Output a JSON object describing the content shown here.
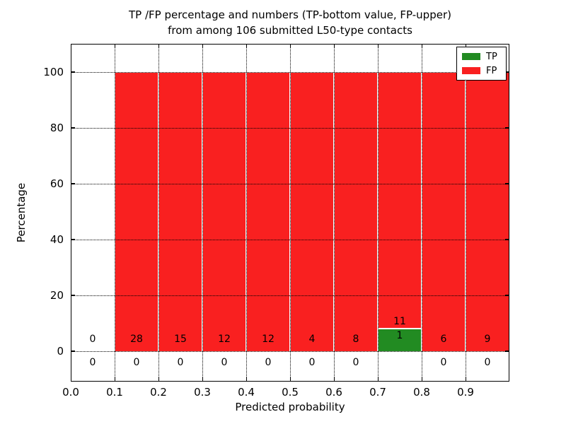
{
  "chart_data": {
    "type": "bar",
    "title": "TP /FP percentage and numbers (TP-bottom value, FP-upper)\nfrom among 106 submitted L50-type contacts",
    "xlabel": "Predicted probability",
    "ylabel": "Percentage",
    "total_submitted": 106,
    "bin_width": 0.1,
    "bin_starts": [
      0.0,
      0.1,
      0.2,
      0.3,
      0.4,
      0.5,
      0.6,
      0.7,
      0.8,
      0.9
    ],
    "series": [
      {
        "name": "TP",
        "color": "#228b22",
        "counts": [
          0,
          0,
          0,
          0,
          0,
          0,
          0,
          1,
          0,
          0
        ]
      },
      {
        "name": "FP",
        "color": "#f92020",
        "counts": [
          0,
          28,
          15,
          12,
          12,
          4,
          8,
          11,
          6,
          9
        ]
      }
    ],
    "bar_total_percent": 100,
    "xlim": [
      0.0,
      1.0
    ],
    "ylim": [
      -11,
      110
    ],
    "xticks": [
      "0.0",
      "0.1",
      "0.2",
      "0.3",
      "0.4",
      "0.5",
      "0.6",
      "0.7",
      "0.8",
      "0.9"
    ],
    "yticks": [
      0,
      20,
      40,
      60,
      80,
      100
    ],
    "grid": "dotted",
    "legend": {
      "position": "upper right",
      "entries": [
        "TP",
        "FP"
      ]
    }
  }
}
